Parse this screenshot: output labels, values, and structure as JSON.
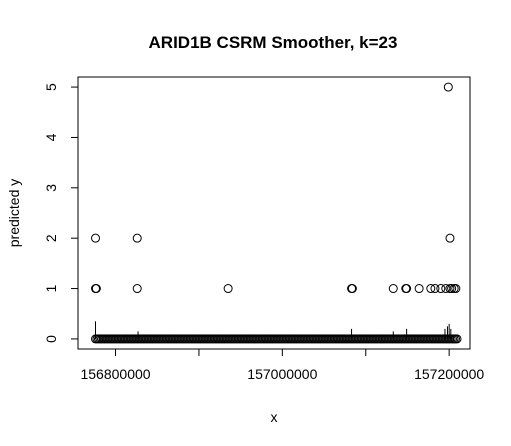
{
  "chart_data": {
    "type": "scatter",
    "title": "ARID1B CSRM Smoother, k=23",
    "xlabel": "x",
    "ylabel": "predicted y",
    "xlim": [
      156755000,
      157225000
    ],
    "ylim": [
      -0.2,
      5.2
    ],
    "xticks": [
      156800000,
      156900000,
      157000000,
      157100000,
      157200000
    ],
    "xtick_labels": [
      "156800000",
      "",
      "157000000",
      "",
      "157200000"
    ],
    "yticks": [
      0,
      1,
      2,
      3,
      4,
      5
    ],
    "ytick_labels": [
      "0",
      "1",
      "2",
      "3",
      "4",
      "5"
    ],
    "grid": false,
    "legend": "none",
    "points": [
      {
        "x": 156776000,
        "y": 2
      },
      {
        "x": 156776000,
        "y": 1
      },
      {
        "x": 156777000,
        "y": 1
      },
      {
        "x": 156826000,
        "y": 2
      },
      {
        "x": 156826000,
        "y": 1
      },
      {
        "x": 156935000,
        "y": 1
      },
      {
        "x": 157083000,
        "y": 1
      },
      {
        "x": 157084000,
        "y": 1
      },
      {
        "x": 157133000,
        "y": 1
      },
      {
        "x": 157148000,
        "y": 1
      },
      {
        "x": 157149000,
        "y": 1
      },
      {
        "x": 157164000,
        "y": 1
      },
      {
        "x": 157178000,
        "y": 1
      },
      {
        "x": 157183000,
        "y": 1
      },
      {
        "x": 157190000,
        "y": 1
      },
      {
        "x": 157196000,
        "y": 1
      },
      {
        "x": 157199000,
        "y": 5
      },
      {
        "x": 157201000,
        "y": 2
      },
      {
        "x": 157201000,
        "y": 1
      },
      {
        "x": 157203000,
        "y": 1
      },
      {
        "x": 157206000,
        "y": 1
      },
      {
        "x": 157208000,
        "y": 1
      }
    ],
    "zero_band": {
      "x_from": 156776000,
      "x_to": 157210000,
      "y": 0
    },
    "spikes": [
      {
        "x": 156776000,
        "y_top": 0.35
      },
      {
        "x": 156827000,
        "y_top": 0.15
      },
      {
        "x": 157083000,
        "y_top": 0.2
      },
      {
        "x": 157133000,
        "y_top": 0.15
      },
      {
        "x": 157149000,
        "y_top": 0.2
      },
      {
        "x": 157195000,
        "y_top": 0.2
      },
      {
        "x": 157198000,
        "y_top": 0.25
      },
      {
        "x": 157200000,
        "y_top": 0.3
      },
      {
        "x": 157202000,
        "y_top": 0.2
      }
    ]
  }
}
